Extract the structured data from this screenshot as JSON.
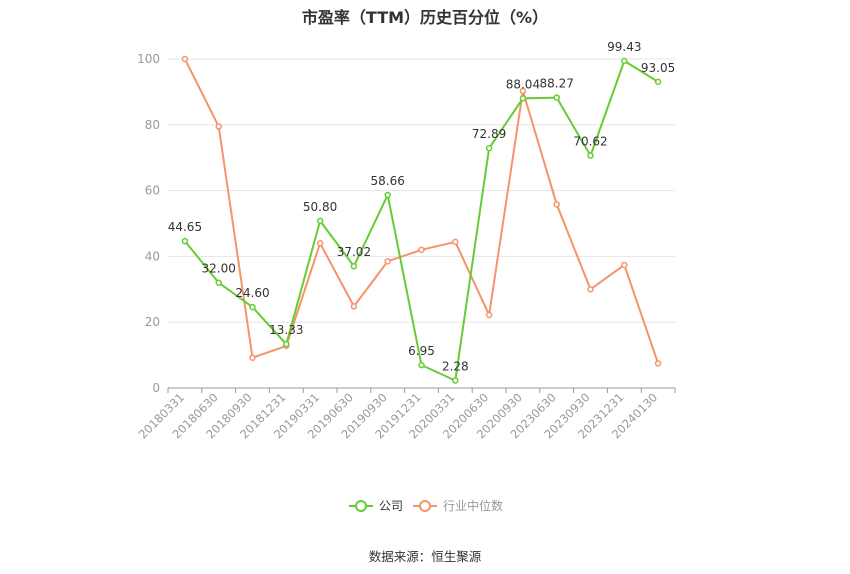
{
  "chart_data": {
    "type": "line",
    "title": "市盈率（TTM）历史百分位（%）",
    "categories": [
      "20180331",
      "20180630",
      "20180930",
      "20181231",
      "20190331",
      "20190630",
      "20190930",
      "20191231",
      "20200331",
      "20200630",
      "20200930",
      "20230630",
      "20230930",
      "20231231",
      "20240130"
    ],
    "series": [
      {
        "name": "公司",
        "color": "#66cc33",
        "values": [
          44.65,
          32.0,
          24.6,
          13.33,
          50.8,
          37.02,
          58.66,
          6.95,
          2.28,
          72.89,
          88.04,
          88.27,
          70.62,
          99.43,
          93.05
        ],
        "labels": [
          "44.65",
          "32.00",
          "24.60",
          "13.33",
          "50.80",
          "37.02",
          "58.66",
          "6.95",
          "2.28",
          "72.89",
          "88.04",
          "88.27",
          "70.62",
          "99.43",
          "93.05"
        ]
      },
      {
        "name": "行业中位数",
        "color": "#f5936b",
        "values": [
          100,
          79.5,
          9.2,
          12.8,
          44.0,
          24.8,
          38.5,
          42.0,
          44.4,
          22.2,
          90.3,
          55.8,
          30.0,
          37.4,
          7.5
        ]
      }
    ],
    "ylim": [
      0,
      100
    ],
    "yticks": [
      0,
      20,
      40,
      60,
      80,
      100
    ],
    "grid": true,
    "legend_position": "bottom"
  },
  "source_text": "数据来源：恒生聚源"
}
